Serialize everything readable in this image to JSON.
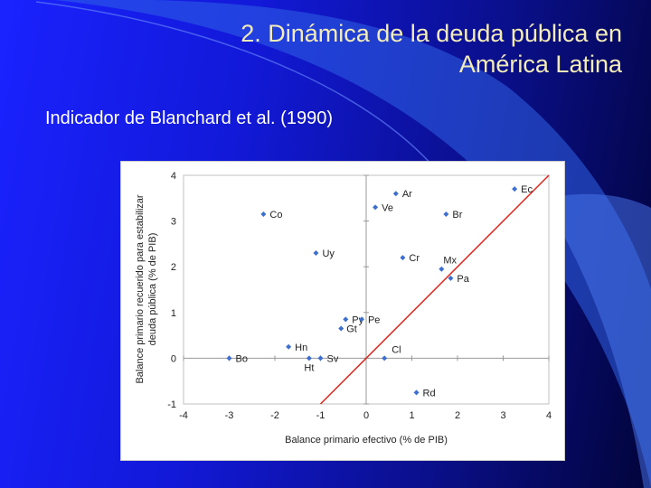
{
  "slide": {
    "title_line1": "2. Dinámica de la deuda pública en",
    "title_line2": "América Latina",
    "subtitle": "Indicador de Blanchard et al. (1990)"
  },
  "colors": {
    "background": "#1a22ff",
    "title": "#f4ecb8",
    "marker": "#3d6fd1",
    "line": "#e0251b"
  },
  "chart_data": {
    "type": "scatter",
    "xlabel": "Balance primario efectivo (% de PIB)",
    "ylabel_line1": "Balance primario recuerido para estabilizar",
    "ylabel_line2": "deuda pública (% de PIB)",
    "xlim": [
      -4,
      4
    ],
    "ylim": [
      -1,
      4
    ],
    "xticks": [
      -4,
      -3,
      -2,
      -1,
      0,
      1,
      2,
      3,
      4
    ],
    "yticks": [
      -1,
      0,
      1,
      2,
      3,
      4
    ],
    "grid": false,
    "points": [
      {
        "label": "Ec",
        "x": 3.25,
        "y": 3.7
      },
      {
        "label": "Ar",
        "x": 0.65,
        "y": 3.6
      },
      {
        "label": "Ve",
        "x": 0.2,
        "y": 3.3
      },
      {
        "label": "Br",
        "x": 1.75,
        "y": 3.15
      },
      {
        "label": "Co",
        "x": -2.25,
        "y": 3.15
      },
      {
        "label": "Uy",
        "x": -1.1,
        "y": 2.3
      },
      {
        "label": "Cr",
        "x": 0.8,
        "y": 2.2
      },
      {
        "label": "Mx",
        "x": 1.65,
        "y": 1.95
      },
      {
        "label": "Pa",
        "x": 1.85,
        "y": 1.75
      },
      {
        "label": "Py",
        "x": -0.45,
        "y": 0.85
      },
      {
        "label": "Pe",
        "x": -0.1,
        "y": 0.85
      },
      {
        "label": "Gt",
        "x": -0.55,
        "y": 0.65
      },
      {
        "label": "Hn",
        "x": -1.7,
        "y": 0.25
      },
      {
        "label": "Bo",
        "x": -3.0,
        "y": 0.0
      },
      {
        "label": "Ht",
        "x": -1.25,
        "y": 0.0
      },
      {
        "label": "Sv",
        "x": -1.0,
        "y": 0.0
      },
      {
        "label": "Cl",
        "x": 0.4,
        "y": 0.0
      },
      {
        "label": "Rd",
        "x": 1.1,
        "y": -0.75
      }
    ],
    "reference_line": {
      "type": "identity",
      "from": [
        -1.0,
        -1.0
      ],
      "to": [
        4.0,
        4.0
      ]
    }
  }
}
